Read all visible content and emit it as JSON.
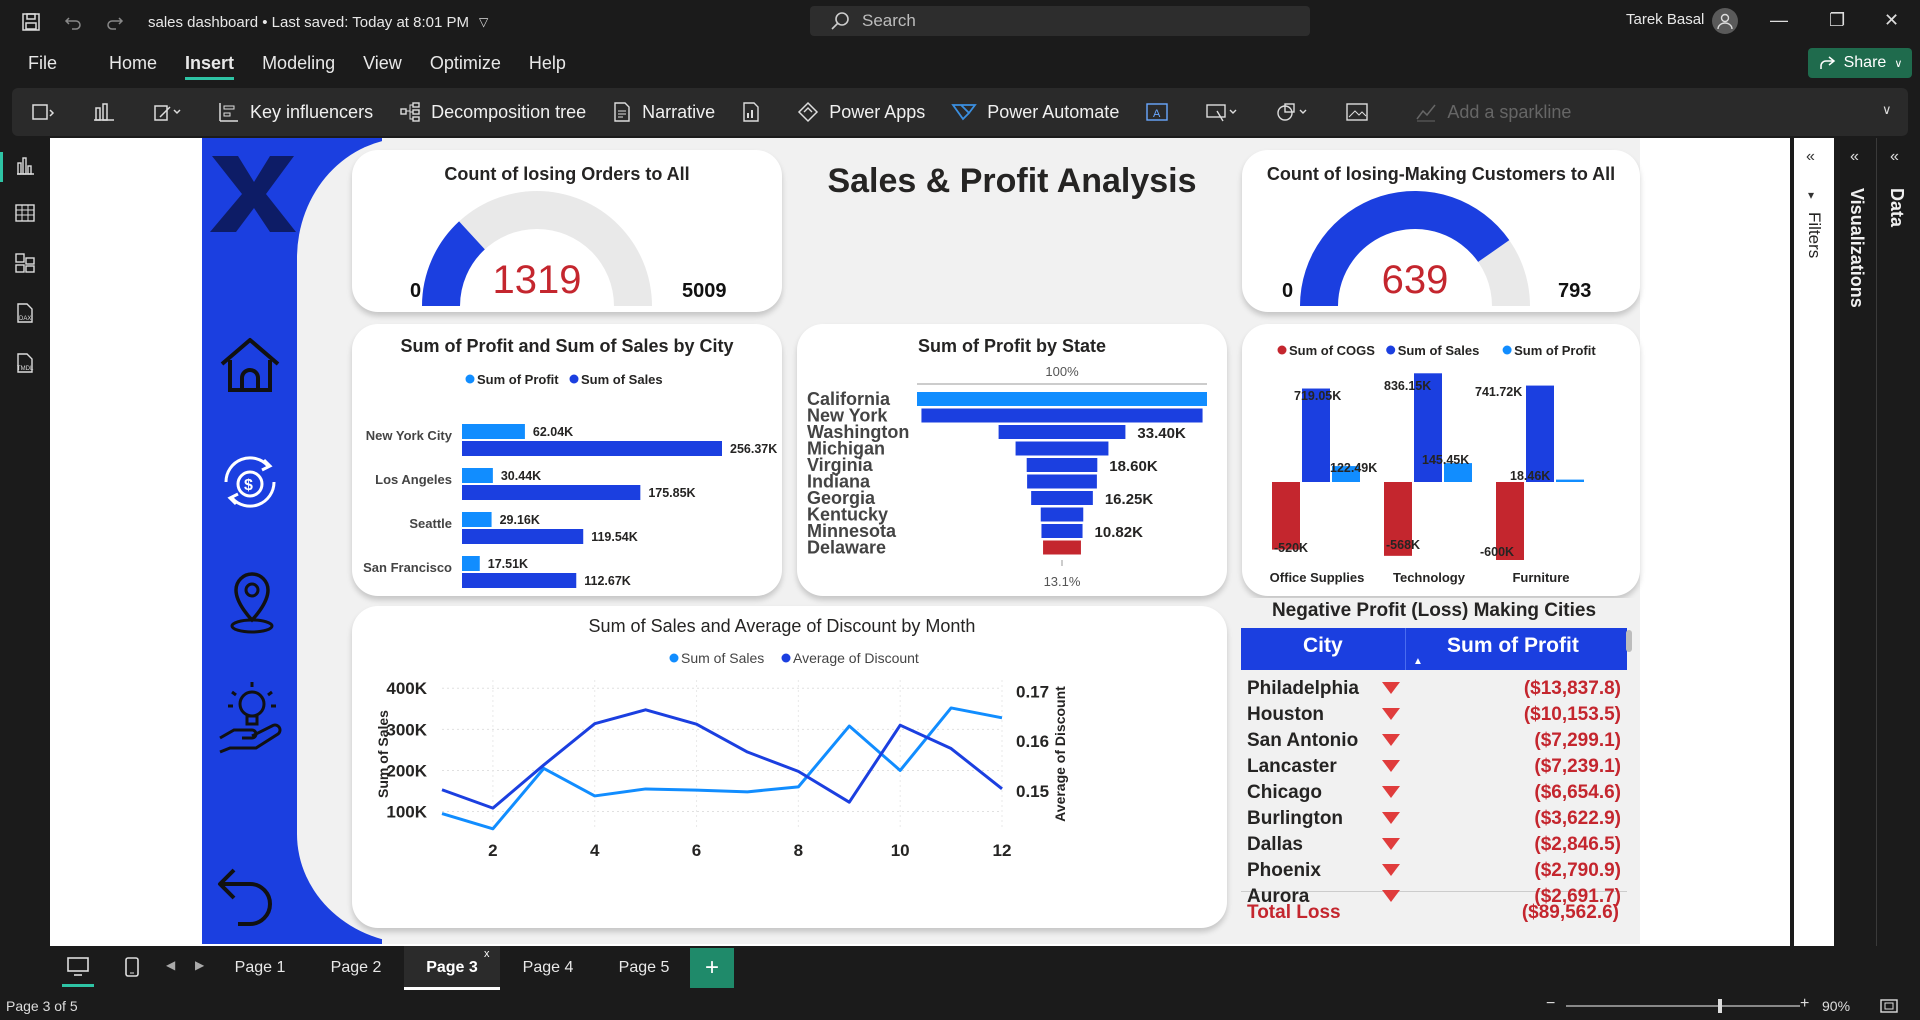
{
  "window": {
    "doc_title": "sales dashboard • Last saved: Today at 8:01 PM",
    "search_placeholder": "Search",
    "user_name": "Tarek Basal",
    "share_label": "Share"
  },
  "menu": [
    "File",
    "Home",
    "Insert",
    "Modeling",
    "View",
    "Optimize",
    "Help"
  ],
  "menu_active": "Insert",
  "ribbon": {
    "key_influencers": "Key influencers",
    "decomposition_tree": "Decomposition tree",
    "narrative": "Narrative",
    "power_apps": "Power Apps",
    "power_automate": "Power Automate",
    "add_sparkline": "Add a sparkline"
  },
  "right_panes": {
    "filters": "Filters",
    "visualizations": "Visualizations",
    "data": "Data"
  },
  "report": {
    "title": "Sales & Profit Analysis",
    "gauge_orders": {
      "title": "Count of losing Orders to All",
      "min": "0",
      "value": "1319",
      "max": "5009",
      "fill": 0.263
    },
    "gauge_customers": {
      "title": "Count of losing-Making Customers to All",
      "min": "0",
      "value": "639",
      "max": "793",
      "fill": 0.806
    }
  },
  "chart_data": [
    {
      "type": "bar",
      "title": "Sum of Profit and Sum of Sales by City",
      "categories": [
        "New York City",
        "Los Angeles",
        "Seattle",
        "San Francisco"
      ],
      "series": [
        {
          "name": "Sum of Profit",
          "values": [
            62.04,
            30.44,
            29.16,
            17.51
          ],
          "labels": [
            "62.04K",
            "30.44K",
            "29.16K",
            "17.51K"
          ],
          "color": "#118dff"
        },
        {
          "name": "Sum of Sales",
          "values": [
            256.37,
            175.85,
            119.54,
            112.67
          ],
          "labels": [
            "256.37K",
            "175.85K",
            "119.54K",
            "112.67K"
          ],
          "color": "#1b3fe0"
        }
      ]
    },
    {
      "type": "bar",
      "title": "Sum of Profit by State",
      "top_label": "100%",
      "bottom_label": "13.1%",
      "categories": [
        "California",
        "New York",
        "Washington",
        "Michigan",
        "Virginia",
        "Indiana",
        "Georgia",
        "Kentucky",
        "Minnesota",
        "Delaware"
      ],
      "values": [
        76.38,
        74.04,
        33.4,
        24.46,
        18.6,
        18.38,
        16.25,
        11.2,
        10.82,
        9.98
      ],
      "labels": [
        "",
        "",
        "33.40K",
        "",
        "18.60K",
        "",
        "16.25K",
        "",
        "10.82K",
        ""
      ],
      "colors": [
        "#118dff",
        "#1b3fe0",
        "#1b3fe0",
        "#1b3fe0",
        "#1b3fe0",
        "#1b3fe0",
        "#1b3fe0",
        "#1b3fe0",
        "#1b3fe0",
        "#c4262e"
      ]
    },
    {
      "type": "bar",
      "categories": [
        "Office Supplies",
        "Technology",
        "Furniture"
      ],
      "series": [
        {
          "name": "Sum of COGS",
          "values": [
            -520,
            -568,
            -600
          ],
          "labels": [
            "-520K",
            "-568K",
            "-600K"
          ],
          "color": "#c4262e"
        },
        {
          "name": "Sum of Sales",
          "values": [
            719.05,
            836.15,
            741.72
          ],
          "labels": [
            "719.05K",
            "836.15K",
            "741.72K"
          ],
          "color": "#1b3fe0"
        },
        {
          "name": "Sum of Profit",
          "values": [
            122.49,
            145.45,
            18.46
          ],
          "labels": [
            "122.49K",
            "145.45K",
            "18.46K"
          ],
          "color": "#118dff"
        }
      ]
    },
    {
      "type": "line",
      "title": "Sum of Sales and Average of Discount by Month",
      "x": [
        1,
        2,
        3,
        4,
        5,
        6,
        7,
        8,
        9,
        10,
        11,
        12
      ],
      "xticks": [
        "2",
        "4",
        "6",
        "8",
        "10",
        "12"
      ],
      "ylabel": "Sum of Sales",
      "y2label": "Average of Discount",
      "yticks": [
        "100K",
        "200K",
        "300K",
        "400K"
      ],
      "y2ticks": [
        "0.15",
        "0.16",
        "0.17"
      ],
      "ylim": [
        60000,
        420000
      ],
      "y2lim": [
        0.1425,
        0.1723
      ],
      "series": [
        {
          "name": "Sum of Sales",
          "axis": "left",
          "color": "#118dff",
          "values": [
            95000,
            58000,
            205000,
            138000,
            155000,
            152000,
            148000,
            160000,
            308000,
            200000,
            352000,
            328000
          ]
        },
        {
          "name": "Average of Discount",
          "axis": "right",
          "color": "#1b3fe0",
          "values": [
            0.1502,
            0.1465,
            0.1552,
            0.1635,
            0.1663,
            0.1634,
            0.1578,
            0.1539,
            0.1477,
            0.1632,
            0.1585,
            0.1504
          ]
        }
      ]
    },
    {
      "type": "table",
      "title": "Negative Profit (Loss) Making Cities",
      "columns": [
        "City",
        "Sum of Profit"
      ],
      "rows": [
        [
          "Philadelphia",
          "($13,837.8)"
        ],
        [
          "Houston",
          "($10,153.5)"
        ],
        [
          "San Antonio",
          "($7,299.1)"
        ],
        [
          "Lancaster",
          "($7,239.1)"
        ],
        [
          "Chicago",
          "($6,654.6)"
        ],
        [
          "Burlington",
          "($3,622.9)"
        ],
        [
          "Dallas",
          "($2,846.5)"
        ],
        [
          "Phoenix",
          "($2,790.9)"
        ],
        [
          "Aurora",
          "($2,691.7)"
        ]
      ],
      "total": [
        "Total Loss",
        "($89,562.6)"
      ]
    }
  ],
  "pages": [
    "Page 1",
    "Page 2",
    "Page 3",
    "Page 4",
    "Page 5"
  ],
  "active_page": "Page 3",
  "status": {
    "page_indicator": "Page 3 of 5",
    "zoom": "90%"
  }
}
